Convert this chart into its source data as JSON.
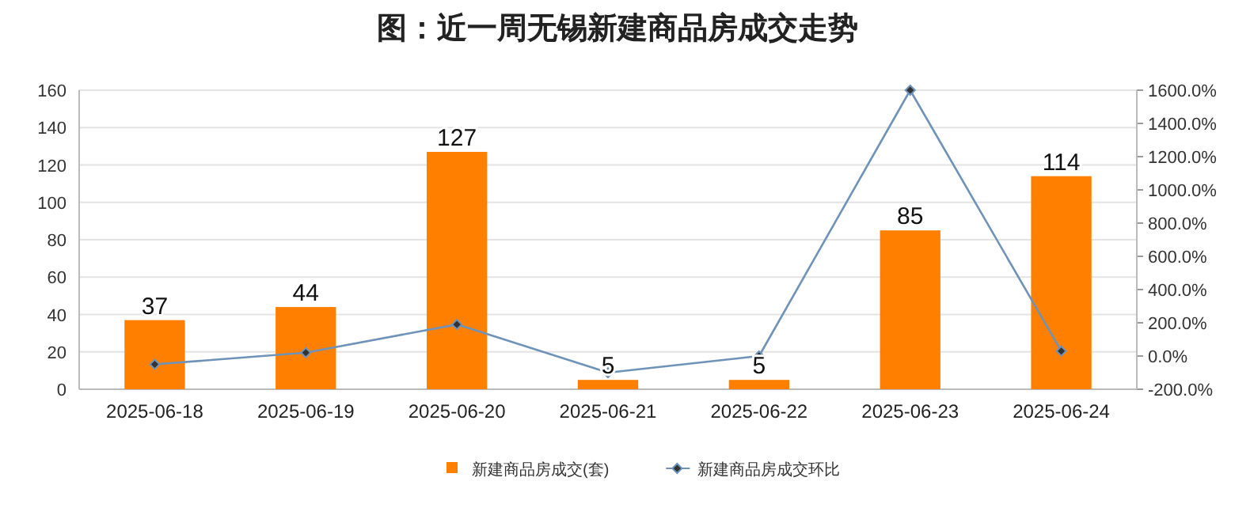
{
  "chart_data": {
    "type": "bar",
    "title": "图：近一周无锡新建商品房成交走势",
    "categories": [
      "2025-06-18",
      "2025-06-19",
      "2025-06-20",
      "2025-06-21",
      "2025-06-22",
      "2025-06-23",
      "2025-06-24"
    ],
    "series": [
      {
        "name": "新建商品房成交(套)",
        "color": "#ff8000",
        "values": [
          37,
          44,
          127,
          5,
          5,
          85,
          114
        ],
        "data_labels": true
      },
      {
        "name": "新建商品房成交环比",
        "type": "line",
        "axis": "y2",
        "color": "#6f93b8",
        "marker": "diamond",
        "values": [
          -50,
          20,
          190,
          -100,
          0,
          1600,
          30
        ]
      }
    ],
    "ylim": [
      0,
      160
    ],
    "yticks": [
      0,
      20,
      40,
      60,
      80,
      100,
      120,
      140,
      160
    ],
    "y2lim": [
      -200,
      1600
    ],
    "y2ticks": [
      {
        "value": -200,
        "label": "-200.0%"
      },
      {
        "value": 0,
        "label": "0.0%"
      },
      {
        "value": 200,
        "label": "200.0%"
      },
      {
        "value": 400,
        "label": "400.0%"
      },
      {
        "value": 600,
        "label": "600.0%"
      },
      {
        "value": 800,
        "label": "800.0%"
      },
      {
        "value": 1000,
        "label": "1000.0%"
      },
      {
        "value": 1200,
        "label": "1200.0%"
      },
      {
        "value": 1400,
        "label": "1400.0%"
      },
      {
        "value": 1600,
        "label": "1600.0%"
      }
    ],
    "grid": "y",
    "legend": "bottom"
  }
}
